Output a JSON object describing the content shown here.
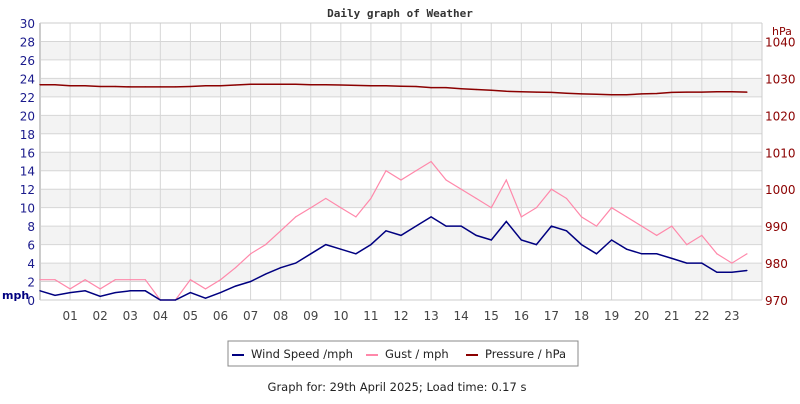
{
  "chart_data": {
    "type": "line",
    "title": "Daily graph of Weather",
    "ylabel_left": "mph",
    "ylabel_right": "hPa",
    "ylim_left": [
      0,
      30
    ],
    "ylim_right": [
      970,
      1045
    ],
    "xlim": [
      0,
      24
    ],
    "grid": true,
    "legend_placement": "bottom",
    "x_tick_labels": [
      "01",
      "02",
      "03",
      "04",
      "05",
      "06",
      "07",
      "08",
      "09",
      "10",
      "11",
      "12",
      "13",
      "14",
      "15",
      "16",
      "17",
      "18",
      "19",
      "20",
      "21",
      "22",
      "23"
    ],
    "y_left_ticks": [
      0,
      2,
      4,
      6,
      8,
      10,
      12,
      14,
      16,
      18,
      20,
      22,
      24,
      26,
      28,
      30
    ],
    "y_right_ticks": [
      970,
      980,
      990,
      1000,
      1010,
      1020,
      1030,
      1040
    ],
    "x_hours": [
      0,
      0.5,
      1,
      1.5,
      2,
      2.5,
      3,
      3.5,
      4,
      4.5,
      5,
      5.5,
      6,
      6.5,
      7,
      7.5,
      8,
      8.5,
      9,
      9.5,
      10,
      10.5,
      11,
      11.5,
      12,
      12.5,
      13,
      13.5,
      14,
      14.5,
      15,
      15.5,
      16,
      16.5,
      17,
      17.5,
      18,
      18.5,
      19,
      19.5,
      20,
      20.5,
      21,
      21.5,
      22,
      22.5,
      23,
      23.5
    ],
    "series": [
      {
        "name": "Wind Speed /mph",
        "axis": "left",
        "color": "#000080",
        "values": [
          1.0,
          0.5,
          0.8,
          1.0,
          0.4,
          0.8,
          1.0,
          1.0,
          0,
          0,
          0.8,
          0.2,
          0.8,
          1.5,
          2.0,
          2.8,
          3.5,
          4.0,
          5.0,
          6.0,
          5.5,
          5.0,
          6.0,
          7.5,
          7.0,
          8.0,
          9.0,
          8.0,
          8.0,
          7.0,
          6.5,
          8.5,
          6.5,
          6.0,
          8.0,
          7.5,
          6.0,
          5.0,
          6.5,
          5.5,
          5.0,
          5.0,
          4.5,
          4.0,
          4.0,
          3.0,
          3.0,
          3.2
        ]
      },
      {
        "name": "Gust / mph",
        "axis": "left",
        "color": "#ff88aa",
        "values": [
          2.2,
          2.2,
          1.2,
          2.2,
          1.2,
          2.2,
          2.2,
          2.2,
          0,
          0,
          2.2,
          1.2,
          2.2,
          3.5,
          5.0,
          6.0,
          7.5,
          9.0,
          10,
          11,
          10,
          9,
          11,
          14,
          13,
          14,
          15,
          13,
          12,
          11,
          10,
          13,
          9,
          10,
          12,
          11,
          9,
          8,
          10,
          9,
          8,
          7,
          8,
          6,
          7,
          5,
          4,
          5
        ]
      },
      {
        "name": "Pressure / hPa",
        "axis": "right",
        "color": "#8b0000",
        "values": [
          1028.3,
          1028.3,
          1028.0,
          1028.0,
          1027.8,
          1027.8,
          1027.7,
          1027.7,
          1027.7,
          1027.7,
          1027.8,
          1028.0,
          1028.0,
          1028.2,
          1028.4,
          1028.4,
          1028.4,
          1028.4,
          1028.3,
          1028.3,
          1028.2,
          1028.1,
          1028.0,
          1028.0,
          1027.9,
          1027.8,
          1027.5,
          1027.5,
          1027.2,
          1027.0,
          1026.8,
          1026.5,
          1026.4,
          1026.3,
          1026.2,
          1026.0,
          1025.8,
          1025.7,
          1025.6,
          1025.6,
          1025.8,
          1025.9,
          1026.2,
          1026.3,
          1026.3,
          1026.4,
          1026.4,
          1026.3
        ]
      }
    ]
  },
  "footer": "Graph for: 29th April 2025; Load time: 0.17 s"
}
